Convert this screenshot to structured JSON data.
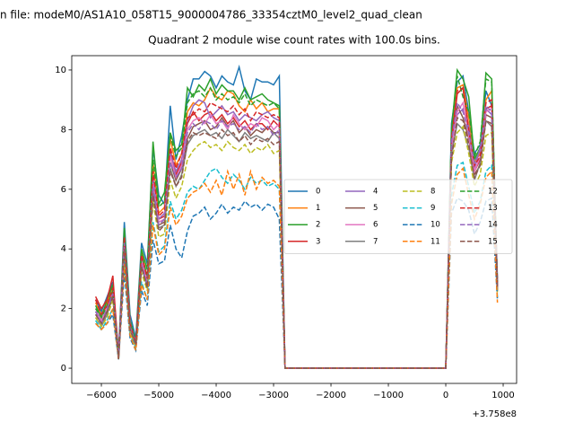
{
  "chart_data": {
    "type": "line",
    "suptitle": "n file: modeM0/AS1A10_058T15_9000004786_33354cztM0_level2_quad_clean",
    "title": "Quadrant 2 module wise count rates with 100.0s bins.",
    "x_offset_label": "+3.758e8",
    "x": [
      -6100,
      -6000,
      -5900,
      -5800,
      -5700,
      -5600,
      -5500,
      -5400,
      -5300,
      -5200,
      -5100,
      -5000,
      -4900,
      -4800,
      -4700,
      -4600,
      -4500,
      -4400,
      -4300,
      -4200,
      -4100,
      -4000,
      -3900,
      -3800,
      -3700,
      -3600,
      -3500,
      -3400,
      -3300,
      -3200,
      -3100,
      -3000,
      -2900,
      -2800,
      0,
      100,
      200,
      300,
      400,
      500,
      600,
      700,
      800,
      900
    ],
    "xlim": [
      -6516,
      1234
    ],
    "xticks": [
      {
        "value": -6000,
        "label": "−6000"
      },
      {
        "value": -5000,
        "label": "−5000"
      },
      {
        "value": -4000,
        "label": "−4000"
      },
      {
        "value": -3000,
        "label": "−3000"
      },
      {
        "value": -2000,
        "label": "−2000"
      },
      {
        "value": -1000,
        "label": "−1000"
      },
      0,
      1000
    ],
    "ylim": [
      -0.51,
      10.48
    ],
    "yticks": [
      0,
      2,
      4,
      6,
      8,
      10
    ],
    "legend_columns": 4,
    "series": [
      {
        "name": "0",
        "color": "#1f77b4",
        "linestyle": "solid",
        "values": [
          2.3,
          1.9,
          2.4,
          2.9,
          0.5,
          4.9,
          1.8,
          1.0,
          4.2,
          3.5,
          7.4,
          5.8,
          5.5,
          8.8,
          7.0,
          7.8,
          9.0,
          9.7,
          9.7,
          9.95,
          9.8,
          9.4,
          9.8,
          9.6,
          9.5,
          10.1,
          9.3,
          9.0,
          9.7,
          9.6,
          9.6,
          9.5,
          9.8,
          0,
          0,
          8.2,
          9.6,
          9.8,
          8.6,
          7.2,
          7.5,
          9.3,
          8.8,
          3.0
        ]
      },
      {
        "name": "1",
        "color": "#ff7f0e",
        "linestyle": "solid",
        "values": [
          2.2,
          1.8,
          2.2,
          2.7,
          0.4,
          4.5,
          1.6,
          0.8,
          3.9,
          3.0,
          6.9,
          5.2,
          5.4,
          7.7,
          6.8,
          7.2,
          8.6,
          8.9,
          8.8,
          9.0,
          9.4,
          9.1,
          9.0,
          9.3,
          9.2,
          8.8,
          8.6,
          9.0,
          8.7,
          8.9,
          8.6,
          8.7,
          8.7,
          0,
          0,
          7.8,
          9.4,
          9.5,
          8.4,
          6.9,
          7.2,
          9.0,
          9.3,
          2.6
        ]
      },
      {
        "name": "2",
        "color": "#2ca02c",
        "linestyle": "solid",
        "values": [
          2.1,
          1.7,
          2.3,
          2.8,
          0.4,
          4.7,
          1.6,
          0.9,
          4.0,
          3.3,
          7.6,
          5.5,
          5.9,
          7.9,
          7.3,
          7.5,
          9.4,
          9.1,
          9.5,
          9.3,
          9.7,
          9.2,
          9.5,
          9.3,
          9.3,
          9.0,
          9.4,
          9.0,
          9.1,
          9.2,
          9.0,
          8.9,
          8.8,
          0,
          0,
          8.0,
          10.0,
          9.7,
          9.1,
          7.0,
          7.4,
          9.9,
          9.7,
          2.7
        ]
      },
      {
        "name": "3",
        "color": "#d62728",
        "linestyle": "solid",
        "values": [
          2.4,
          2.0,
          2.3,
          3.1,
          0.4,
          4.3,
          1.4,
          0.8,
          3.6,
          2.9,
          6.3,
          5.0,
          5.1,
          7.3,
          6.5,
          6.9,
          8.2,
          8.6,
          8.3,
          8.5,
          8.6,
          8.3,
          8.5,
          8.2,
          8.4,
          8.1,
          8.3,
          8.0,
          8.2,
          8.2,
          8.0,
          8.3,
          8.1,
          0,
          0,
          7.6,
          9.2,
          9.4,
          8.0,
          6.6,
          7.0,
          8.7,
          8.8,
          2.9
        ]
      },
      {
        "name": "4",
        "color": "#9467bd",
        "linestyle": "solid",
        "values": [
          1.9,
          1.6,
          2.0,
          2.6,
          0.4,
          4.4,
          1.5,
          0.9,
          3.7,
          3.0,
          6.4,
          5.0,
          5.2,
          7.2,
          6.6,
          7.0,
          8.3,
          8.8,
          9.0,
          8.9,
          8.4,
          8.6,
          8.8,
          8.5,
          8.6,
          8.3,
          8.5,
          8.4,
          8.3,
          8.5,
          8.6,
          8.4,
          8.3,
          0,
          0,
          7.5,
          8.5,
          8.7,
          8.1,
          6.7,
          7.4,
          8.7,
          8.5,
          2.6
        ]
      },
      {
        "name": "5",
        "color": "#8c564b",
        "linestyle": "solid",
        "values": [
          1.8,
          1.5,
          1.9,
          2.5,
          0.4,
          4.2,
          1.4,
          0.8,
          3.5,
          2.8,
          6.0,
          4.8,
          4.9,
          6.9,
          6.3,
          6.7,
          7.7,
          8.1,
          8.2,
          8.3,
          8.0,
          8.1,
          8.4,
          8.1,
          8.3,
          7.9,
          8.1,
          7.8,
          8.0,
          7.9,
          8.1,
          7.9,
          7.9,
          0,
          0,
          7.3,
          8.8,
          8.4,
          7.7,
          6.5,
          6.8,
          8.5,
          8.4,
          2.7
        ]
      },
      {
        "name": "6",
        "color": "#e377c2",
        "linestyle": "solid",
        "values": [
          2.0,
          1.6,
          2.0,
          2.6,
          0.4,
          4.3,
          1.5,
          0.8,
          3.6,
          2.9,
          6.2,
          4.9,
          5.0,
          7.1,
          6.4,
          6.8,
          8.0,
          8.3,
          8.4,
          8.2,
          8.5,
          8.2,
          8.3,
          8.0,
          8.5,
          8.2,
          8.0,
          8.2,
          8.1,
          8.4,
          8.3,
          8.0,
          8.2,
          0,
          0,
          7.4,
          8.6,
          8.9,
          7.8,
          6.6,
          7.1,
          8.6,
          8.7,
          2.7
        ]
      },
      {
        "name": "7",
        "color": "#7f7f7f",
        "linestyle": "solid",
        "values": [
          1.7,
          1.4,
          1.8,
          2.4,
          0.3,
          4.1,
          1.3,
          0.7,
          3.4,
          2.7,
          5.9,
          4.7,
          4.8,
          6.7,
          6.1,
          6.5,
          7.5,
          7.8,
          7.9,
          8.0,
          7.8,
          7.9,
          7.7,
          8.0,
          7.8,
          7.6,
          7.9,
          7.7,
          7.8,
          7.7,
          7.6,
          7.9,
          7.7,
          0,
          0,
          7.2,
          8.2,
          8.0,
          7.4,
          6.3,
          6.9,
          8.3,
          8.1,
          2.6
        ]
      },
      {
        "name": "8",
        "color": "#bcbd22",
        "linestyle": "dashed",
        "values": [
          1.7,
          1.4,
          1.7,
          2.3,
          0.3,
          3.9,
          1.2,
          0.7,
          3.2,
          2.6,
          5.6,
          4.4,
          4.5,
          6.3,
          5.7,
          6.1,
          7.0,
          7.3,
          7.5,
          7.6,
          7.4,
          7.5,
          7.3,
          7.6,
          7.4,
          7.3,
          7.5,
          7.2,
          7.4,
          7.3,
          7.5,
          7.2,
          7.3,
          0,
          0,
          6.9,
          7.9,
          8.1,
          7.2,
          6.1,
          6.5,
          7.8,
          7.9,
          2.5
        ]
      },
      {
        "name": "9",
        "color": "#17becf",
        "linestyle": "dashed",
        "values": [
          1.6,
          1.3,
          1.6,
          2.0,
          0.3,
          3.6,
          1.1,
          0.7,
          2.9,
          2.3,
          4.9,
          3.9,
          4.1,
          5.6,
          5.0,
          5.3,
          5.9,
          6.1,
          6.0,
          6.3,
          6.6,
          6.7,
          6.4,
          6.2,
          6.5,
          6.3,
          6.0,
          6.4,
          6.2,
          6.3,
          6.1,
          6.2,
          6.0,
          0,
          0,
          5.8,
          6.8,
          6.9,
          6.1,
          5.2,
          5.6,
          6.6,
          6.8,
          2.3
        ]
      },
      {
        "name": "10",
        "color": "#1f77b4",
        "linestyle": "dashed",
        "values": [
          1.5,
          1.3,
          1.5,
          1.8,
          0.3,
          3.2,
          1.0,
          0.6,
          2.6,
          2.1,
          4.3,
          3.5,
          3.6,
          4.8,
          4.0,
          3.7,
          4.6,
          5.1,
          5.2,
          5.4,
          5.0,
          5.2,
          5.5,
          5.2,
          5.4,
          5.3,
          5.6,
          5.4,
          5.5,
          5.3,
          5.5,
          5.4,
          5.0,
          0,
          0,
          5.2,
          5.7,
          5.6,
          5.3,
          4.5,
          4.9,
          5.6,
          5.7,
          2.3
        ]
      },
      {
        "name": "11",
        "color": "#ff7f0e",
        "linestyle": "dashed",
        "values": [
          1.5,
          1.3,
          1.5,
          2.0,
          0.3,
          3.5,
          1.1,
          0.6,
          2.8,
          2.3,
          4.8,
          3.8,
          4.0,
          5.4,
          4.8,
          5.1,
          5.7,
          5.9,
          6.0,
          6.2,
          5.9,
          6.3,
          5.8,
          6.6,
          6.0,
          6.5,
          5.8,
          6.6,
          6.0,
          6.4,
          6.2,
          6.3,
          6.1,
          0,
          0,
          5.5,
          6.5,
          6.7,
          5.8,
          5.0,
          5.5,
          6.4,
          6.6,
          2.2
        ]
      },
      {
        "name": "12",
        "color": "#2ca02c",
        "linestyle": "dashed",
        "values": [
          2.0,
          1.7,
          2.1,
          2.6,
          0.4,
          4.6,
          1.5,
          0.9,
          3.8,
          3.1,
          7.0,
          5.4,
          5.6,
          7.8,
          7.1,
          7.4,
          8.9,
          9.2,
          9.3,
          9.1,
          9.4,
          9.0,
          9.2,
          9.0,
          9.1,
          8.9,
          9.2,
          8.8,
          9.0,
          8.9,
          8.8,
          8.9,
          8.7,
          0,
          0,
          8.0,
          9.8,
          9.1,
          8.6,
          7.1,
          7.6,
          9.7,
          9.6,
          2.8
        ]
      },
      {
        "name": "13",
        "color": "#d62728",
        "linestyle": "dashed",
        "values": [
          2.3,
          1.8,
          2.1,
          2.7,
          0.4,
          4.4,
          1.5,
          0.8,
          3.8,
          3.0,
          6.6,
          5.1,
          5.3,
          7.4,
          6.7,
          7.2,
          8.4,
          8.5,
          8.7,
          8.6,
          8.9,
          8.8,
          8.7,
          8.6,
          8.8,
          8.5,
          8.7,
          8.3,
          8.6,
          8.5,
          8.4,
          8.5,
          8.4,
          0,
          0,
          7.7,
          9.3,
          9.4,
          8.0,
          6.8,
          7.1,
          8.9,
          9.0,
          2.7
        ]
      },
      {
        "name": "14",
        "color": "#9467bd",
        "linestyle": "dashed",
        "values": [
          1.9,
          1.5,
          2.0,
          2.5,
          0.4,
          4.2,
          1.4,
          0.8,
          3.5,
          2.8,
          6.1,
          4.8,
          5.0,
          6.9,
          6.4,
          6.7,
          7.9,
          8.2,
          8.0,
          8.3,
          8.2,
          8.0,
          8.3,
          8.1,
          8.2,
          8.0,
          8.1,
          7.9,
          8.2,
          8.0,
          8.1,
          7.8,
          8.0,
          0,
          0,
          7.6,
          8.9,
          8.6,
          7.9,
          6.9,
          7.3,
          8.8,
          8.6,
          2.8
        ]
      },
      {
        "name": "15",
        "color": "#8c564b",
        "linestyle": "dashed",
        "values": [
          1.8,
          1.5,
          1.9,
          2.4,
          0.3,
          4.0,
          1.3,
          0.8,
          3.4,
          2.7,
          5.8,
          4.6,
          4.8,
          6.6,
          6.1,
          6.4,
          7.6,
          7.9,
          7.8,
          7.9,
          7.8,
          7.7,
          8.0,
          7.8,
          7.9,
          7.6,
          7.8,
          7.5,
          7.7,
          7.6,
          7.7,
          7.5,
          7.6,
          0,
          0,
          7.0,
          8.4,
          8.3,
          7.5,
          6.4,
          6.8,
          8.3,
          8.2,
          2.7
        ]
      }
    ]
  }
}
